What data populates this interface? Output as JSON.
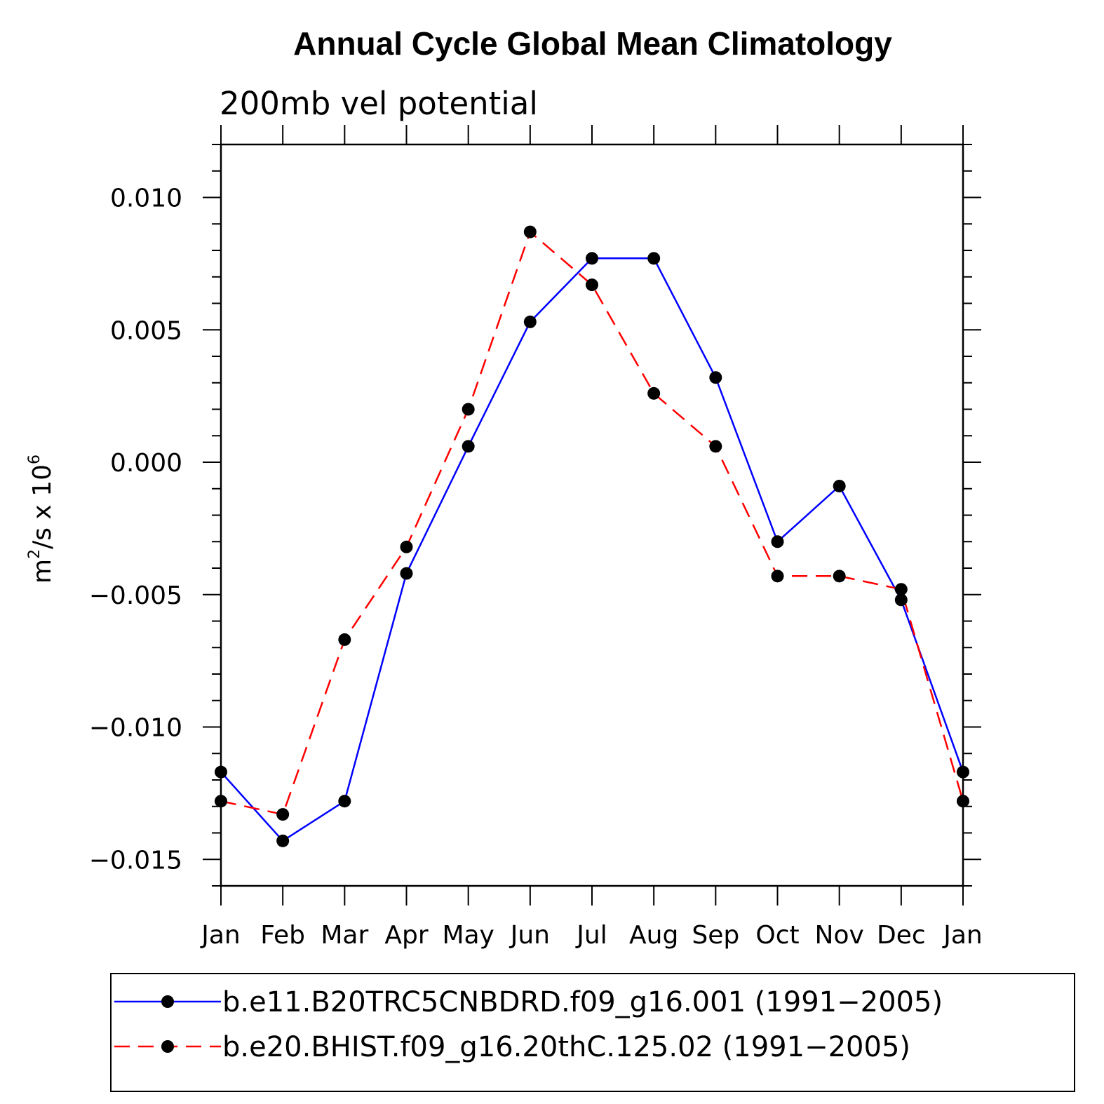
{
  "chart_data": {
    "type": "line",
    "title": "Annual Cycle Global Mean Climatology",
    "subtitle": "200mb vel potential",
    "ylabel": "m²/s x 10⁶",
    "ylabel_base": "m",
    "ylabel_sup1": "2",
    "ylabel_mid": "/s x 10",
    "ylabel_sup2": "6",
    "xlabel": "",
    "categories": [
      "Jan",
      "Feb",
      "Mar",
      "Apr",
      "May",
      "Jun",
      "Jul",
      "Aug",
      "Sep",
      "Oct",
      "Nov",
      "Dec",
      "Jan"
    ],
    "ylim": [
      -0.016,
      0.012
    ],
    "yticks": [
      0.01,
      0.005,
      0.0,
      -0.005,
      -0.01,
      -0.015
    ],
    "ytick_labels": [
      "0.010",
      "0.005",
      "0.000",
      "−0.005",
      "−0.010",
      "−0.015"
    ],
    "series": [
      {
        "name": "b.e11.B20TRC5CNBDRD.f09_g16.001 (1991−2005)",
        "color": "#0000ff",
        "dash": "solid",
        "marker": "filled-circle",
        "values": [
          -0.0117,
          -0.0143,
          -0.0128,
          -0.0042,
          0.0006,
          0.0053,
          0.0077,
          0.0077,
          0.0032,
          -0.003,
          -0.0009,
          -0.0052,
          -0.0117
        ]
      },
      {
        "name": "b.e20.BHIST.f09_g16.20thC.125.02 (1991−2005)",
        "color": "#ff0000",
        "dash": "dashed",
        "marker": "filled-circle",
        "values": [
          -0.0128,
          -0.0133,
          -0.0067,
          -0.0032,
          0.002,
          0.0087,
          0.0067,
          0.0026,
          0.0006,
          -0.0043,
          -0.0043,
          -0.0048,
          -0.0128
        ]
      }
    ],
    "legend_position": "bottom"
  }
}
